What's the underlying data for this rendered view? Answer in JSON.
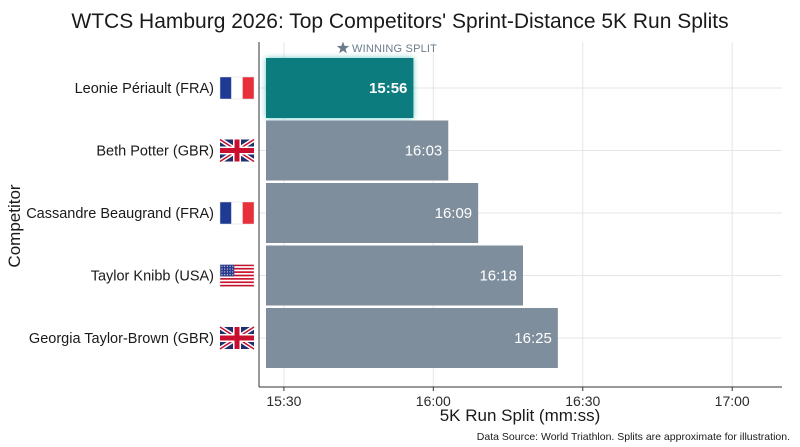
{
  "chart_data": {
    "type": "bar",
    "orientation": "horizontal",
    "title": "WTCS Hamburg 2026: Top Competitors' Sprint-Distance 5K Run Splits",
    "xlabel": "5K Run Split (mm:ss)",
    "ylabel": "Competitor",
    "xlim_seconds": [
      925,
      1030
    ],
    "x_ticks": [
      {
        "label": "15:30",
        "seconds": 930
      },
      {
        "label": "16:00",
        "seconds": 960
      },
      {
        "label": "16:30",
        "seconds": 990
      },
      {
        "label": "17:00",
        "seconds": 1020
      }
    ],
    "grid": true,
    "bars": [
      {
        "name": "Leonie Périault (FRA)",
        "country": "FRA",
        "value": "15:56",
        "seconds": 956,
        "highlight": true
      },
      {
        "name": "Beth Potter (GBR)",
        "country": "GBR",
        "value": "16:03",
        "seconds": 963,
        "highlight": false
      },
      {
        "name": "Cassandre Beaugrand (FRA)",
        "country": "FRA",
        "value": "16:09",
        "seconds": 969,
        "highlight": false
      },
      {
        "name": "Taylor Knibb (USA)",
        "country": "USA",
        "value": "16:18",
        "seconds": 978,
        "highlight": false
      },
      {
        "name": "Georgia Taylor-Brown (GBR)",
        "country": "GBR",
        "value": "16:25",
        "seconds": 985,
        "highlight": false
      }
    ],
    "annotation": "WINNING SPLIT",
    "annotation_icon": "star-icon",
    "colors": {
      "highlight": "#0f7b7f",
      "default": "#7f8e9d",
      "badge": "#6b7d8c"
    }
  },
  "source_note": "Data Source: World Triathlon. Splits are approximate for illustration."
}
